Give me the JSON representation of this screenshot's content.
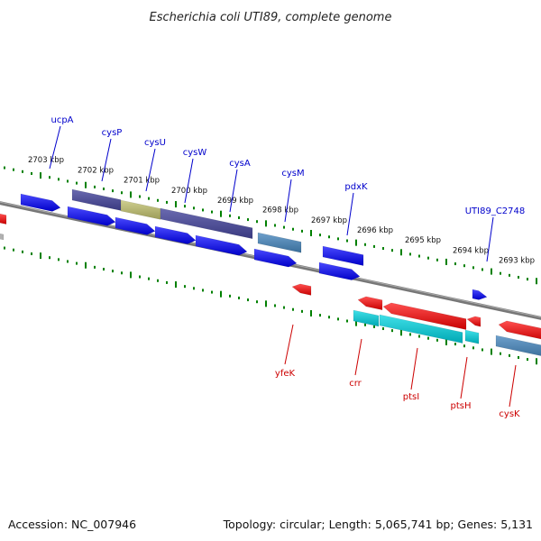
{
  "title": "Escherichia coli UTI89, complete genome",
  "footer": {
    "accession": "Accession: NC_007946",
    "summary": "Topology: circular; Length: 5,065,741 bp; Genes: 5,131"
  },
  "ticks": [
    "2703 kbp",
    "2702 kbp",
    "2701 kbp",
    "2700 kbp",
    "2699 kbp",
    "2698 kbp",
    "2697 kbp",
    "2696 kbp",
    "2695 kbp",
    "2694 kbp",
    "2693 kbp"
  ],
  "genes_top": [
    {
      "label": "ucpA",
      "color": "#0000cc"
    },
    {
      "label": "cysP",
      "color": "#0000cc"
    },
    {
      "label": "cysU",
      "color": "#0000cc"
    },
    {
      "label": "cysW",
      "color": "#0000cc"
    },
    {
      "label": "cysA",
      "color": "#0000cc"
    },
    {
      "label": "cysM",
      "color": "#0000cc"
    },
    {
      "label": "pdxK",
      "color": "#0000cc"
    },
    {
      "label": "UTI89_C2748",
      "color": "#0000cc"
    }
  ],
  "genes_bottom": [
    {
      "label": "yfeK",
      "color": "#cc0000"
    },
    {
      "label": "crr",
      "color": "#cc0000"
    },
    {
      "label": "ptsI",
      "color": "#cc0000"
    },
    {
      "label": "ptsH",
      "color": "#cc0000"
    },
    {
      "label": "cysK",
      "color": "#cc0000"
    }
  ],
  "colors": {
    "forward_cds": "#0000ee",
    "reverse_cds": "#ee0000",
    "forward_rna": "#4682b4",
    "reverse_rna": "#00bfc8",
    "feature_dark": "#4b4b96",
    "feature_olive": "#b4b46e",
    "backbone": "#808080",
    "tick": "#008000"
  }
}
